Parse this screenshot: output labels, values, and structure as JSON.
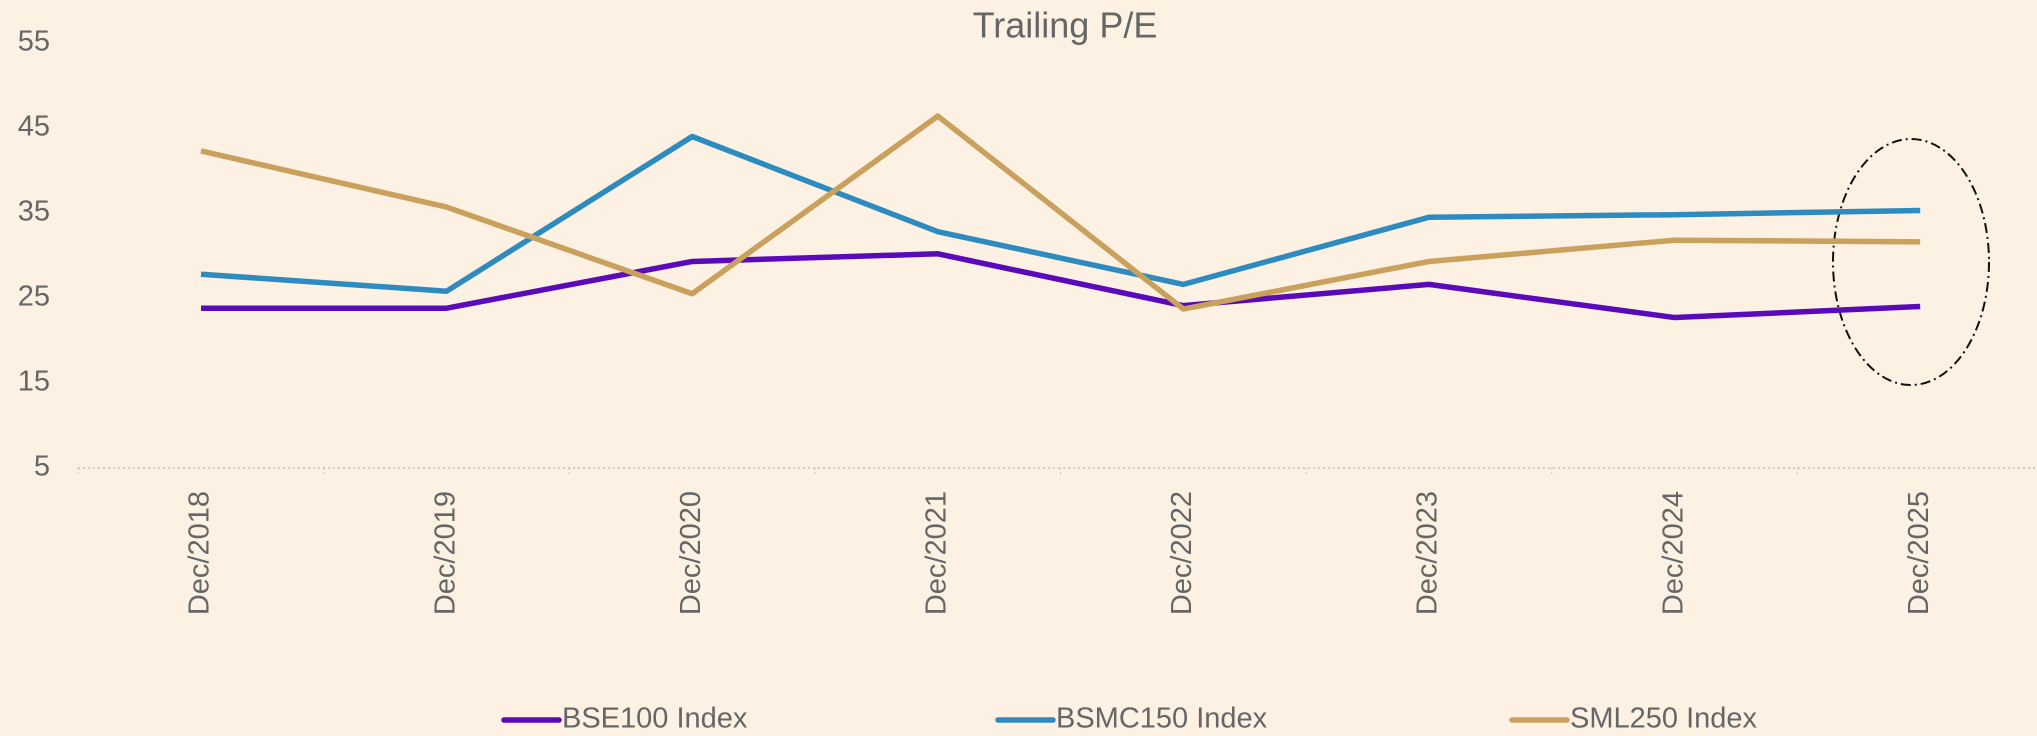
{
  "chart_data": {
    "type": "line",
    "title": "Trailing P/E",
    "categories": [
      "Dec/2018",
      "Dec/2019",
      "Dec/2020",
      "Dec/2021",
      "Dec/2022",
      "Dec/2023",
      "Dec/2024",
      "Dec/2025"
    ],
    "series": [
      {
        "name": "BSE100 Index",
        "color": "#5b0aba",
        "values": [
          23.8,
          23.8,
          29.3,
          30.2,
          24.1,
          26.6,
          22.7,
          24.0
        ]
      },
      {
        "name": "BSMC150 Index",
        "color": "#2e8bc0",
        "values": [
          27.8,
          25.8,
          44.0,
          32.8,
          26.6,
          34.5,
          34.8,
          35.3
        ]
      },
      {
        "name": "SML250 Index",
        "color": "#c9a05c",
        "values": [
          42.3,
          35.7,
          25.5,
          46.4,
          23.7,
          29.3,
          31.8,
          31.6
        ]
      }
    ],
    "ylim": [
      5,
      55
    ],
    "yticks": [
      5,
      15,
      25,
      35,
      45,
      55
    ],
    "grid": false,
    "legend": "bottom"
  }
}
